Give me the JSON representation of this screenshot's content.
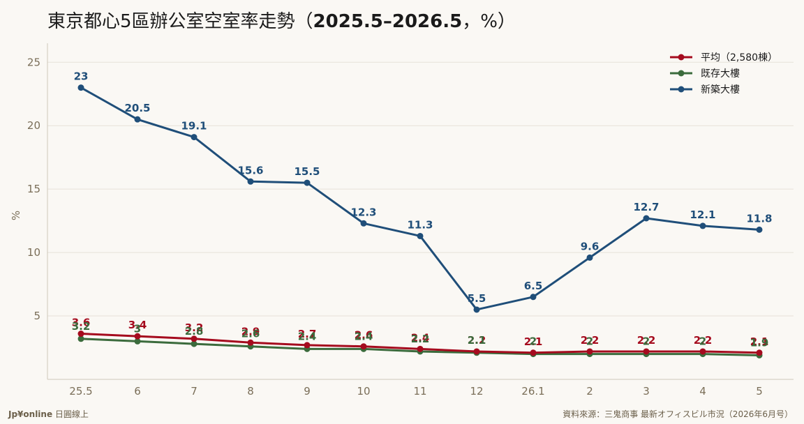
{
  "title": {
    "prefix": "東京都心5區辦公室空室率走勢（",
    "range": "2025.5–2026.5",
    "suffix": "，%）"
  },
  "footer": {
    "brand": "Jp¥online",
    "brand_sub": " 日圓線上",
    "source": "資料來源：三鬼商事 最新オフィスビル市況（2026年6月号）"
  },
  "chart_data": {
    "type": "line",
    "categories": [
      "25.5",
      "6",
      "7",
      "8",
      "9",
      "10",
      "11",
      "12",
      "26.1",
      "2",
      "3",
      "4",
      "5"
    ],
    "ylabel": "%",
    "ylim": [
      0,
      26.5
    ],
    "yticks": [
      5,
      10,
      15,
      20,
      25
    ],
    "grid": true,
    "legend_position": "top-right",
    "series": [
      {
        "name": "平均（2,580棟）",
        "color": "#a50b1e",
        "values": [
          3.6,
          3.4,
          3.2,
          2.9,
          2.7,
          2.6,
          2.4,
          2.2,
          2.1,
          2.2,
          2.2,
          2.2,
          2.1
        ]
      },
      {
        "name": "既存大樓",
        "color": "#3b6b3c",
        "values": [
          3.2,
          3.0,
          2.8,
          2.6,
          2.4,
          2.4,
          2.2,
          2.1,
          2.0,
          2.0,
          2.0,
          2.0,
          1.9
        ]
      },
      {
        "name": "新築大樓",
        "color": "#1f4e79",
        "values": [
          23,
          20.5,
          19.1,
          15.6,
          15.5,
          12.3,
          11.3,
          5.5,
          6.5,
          9.6,
          12.7,
          12.1,
          11.8
        ]
      }
    ],
    "point_labels": [
      [
        "3.6",
        "3.4",
        "3.2",
        "2.9",
        "2.7",
        "2.6",
        "2.4",
        "2.2",
        "2.1",
        "2.2",
        "2.2",
        "2.2",
        "2.1"
      ],
      [
        "3.2",
        "3",
        "2.8",
        "2.6",
        "2.4",
        "2.4",
        "2.2",
        "2.1",
        "2",
        "2",
        "2",
        "2",
        "1.9"
      ],
      [
        "23",
        "20.5",
        "19.1",
        "15.6",
        "15.5",
        "12.3",
        "11.3",
        "5.5",
        "6.5",
        "9.6",
        "12.7",
        "12.1",
        "11.8"
      ]
    ]
  }
}
